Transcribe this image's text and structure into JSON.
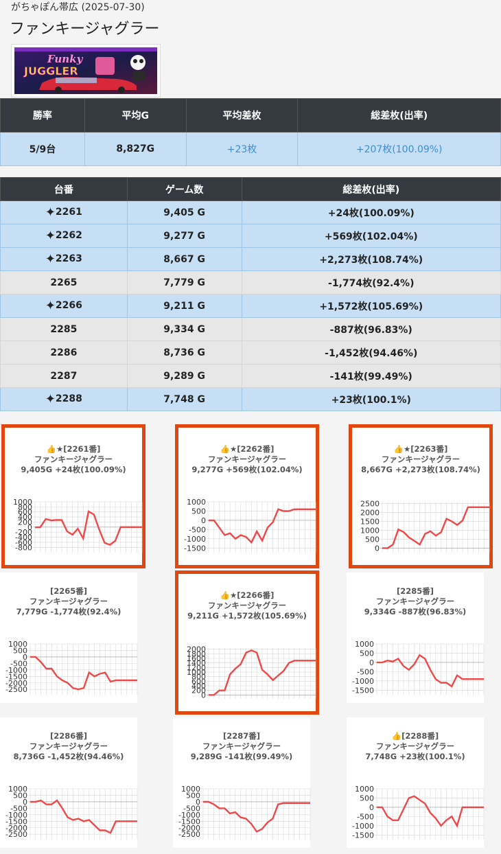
{
  "header": {
    "store": "がちゃぽん帯広 (2025-07-30)",
    "title": "ファンキージャグラー"
  },
  "summary": {
    "headers": [
      "勝率",
      "平均G",
      "平均差枚",
      "総差枚(出率)"
    ],
    "values": [
      "5/9台",
      "8,827G",
      "+23枚",
      "+207枚(100.09%)"
    ]
  },
  "units": {
    "headers": [
      "台番",
      "ゲーム数",
      "総差枚(出率)"
    ],
    "rows": [
      {
        "id": "2261",
        "games": "9,405 G",
        "diff": "+24枚(100.09%)",
        "win": true
      },
      {
        "id": "2262",
        "games": "9,277 G",
        "diff": "+569枚(102.04%)",
        "win": true
      },
      {
        "id": "2263",
        "games": "8,667 G",
        "diff": "+2,273枚(108.74%)",
        "win": true
      },
      {
        "id": "2265",
        "games": "7,779 G",
        "diff": "-1,774枚(92.4%)",
        "win": false
      },
      {
        "id": "2266",
        "games": "9,211 G",
        "diff": "+1,572枚(105.69%)",
        "win": true
      },
      {
        "id": "2285",
        "games": "9,334 G",
        "diff": "-887枚(96.83%)",
        "win": false
      },
      {
        "id": "2286",
        "games": "8,736 G",
        "diff": "-1,452枚(94.46%)",
        "win": false
      },
      {
        "id": "2287",
        "games": "9,289 G",
        "diff": "-141枚(99.49%)",
        "win": false
      },
      {
        "id": "2288",
        "games": "7,748 G",
        "diff": "+23枚(100.1%)",
        "win": true
      }
    ]
  },
  "cards": [
    {
      "title": "👍★[2261番]",
      "model": "ファンキージャグラー",
      "summary": "9,405G +24枚(100.09%)",
      "highlight": true
    },
    {
      "title": "👍★[2262番]",
      "model": "ファンキージャグラー",
      "summary": "9,277G +569枚(102.04%)",
      "highlight": true
    },
    {
      "title": "👍★[2263番]",
      "model": "ファンキージャグラー",
      "summary": "8,667G +2,273枚(108.74%)",
      "highlight": true
    },
    {
      "title": "[2265番]",
      "model": "ファンキージャグラー",
      "summary": "7,779G -1,774枚(92.4%)",
      "highlight": false
    },
    {
      "title": "👍★[2266番]",
      "model": "ファンキージャグラー",
      "summary": "9,211G +1,572枚(105.69%)",
      "highlight": true
    },
    {
      "title": "[2285番]",
      "model": "ファンキージャグラー",
      "summary": "9,334G -887枚(96.83%)",
      "highlight": false
    },
    {
      "title": "[2286番]",
      "model": "ファンキージャグラー",
      "summary": "8,736G -1,452枚(94.46%)",
      "highlight": false
    },
    {
      "title": "[2287番]",
      "model": "ファンキージャグラー",
      "summary": "9,289G -141枚(99.49%)",
      "highlight": false
    },
    {
      "title": "👍[2288番]",
      "model": "ファンキージャグラー",
      "summary": "7,748G +23枚(100.1%)",
      "highlight": false
    }
  ],
  "colors": {
    "line": "#f04848",
    "highlight_border": "#e0480f",
    "header_bg": "#343a40",
    "win_row": "#c6dff5",
    "lose_row": "#e7e7e7"
  },
  "chart_data": [
    {
      "type": "line",
      "ylim": [
        -900,
        1000
      ],
      "yticks": [
        1000,
        800,
        600,
        400,
        200,
        0,
        -200,
        -400,
        -600,
        -800
      ],
      "values": [
        -10,
        0,
        320,
        270,
        280,
        280,
        -170,
        -300,
        -60,
        -450,
        620,
        500,
        -100,
        -620,
        -700,
        -540,
        0,
        0,
        0,
        0,
        0
      ]
    },
    {
      "type": "line",
      "ylim": [
        -1600,
        1000
      ],
      "yticks": [
        1000,
        500,
        0,
        -500,
        -1000,
        -1500
      ],
      "values": [
        0,
        0,
        -400,
        -800,
        -700,
        -1000,
        -800,
        -900,
        -1200,
        -600,
        -1100,
        -400,
        -100,
        600,
        500,
        500,
        600,
        600,
        600,
        600,
        600
      ]
    },
    {
      "type": "line",
      "ylim": [
        -100,
        2600
      ],
      "yticks": [
        2500,
        2000,
        1500,
        1000,
        500,
        0
      ],
      "values": [
        0,
        0,
        200,
        1050,
        900,
        600,
        400,
        200,
        800,
        950,
        700,
        900,
        1650,
        1500,
        1300,
        1550,
        2300,
        2300,
        2300,
        2300,
        2300
      ]
    },
    {
      "type": "line",
      "ylim": [
        -2700,
        1000
      ],
      "yticks": [
        1000,
        500,
        0,
        -500,
        -1000,
        -1500,
        -2000,
        -2500
      ],
      "values": [
        0,
        0,
        -400,
        -900,
        -900,
        -1500,
        -1800,
        -2000,
        -2400,
        -2500,
        -2400,
        -1200,
        -1500,
        -1300,
        -1200,
        -1900,
        -1800,
        -1800,
        -1800,
        -1800,
        -1800
      ]
    },
    {
      "type": "line",
      "ylim": [
        -50,
        2050
      ],
      "yticks": [
        2000,
        1800,
        1600,
        1400,
        1200,
        1000,
        800,
        600,
        400,
        200,
        0
      ],
      "values": [
        0,
        0,
        200,
        200,
        900,
        1150,
        1350,
        1850,
        1950,
        1850,
        1100,
        900,
        650,
        850,
        1050,
        1400,
        1500,
        1500,
        1500,
        1500,
        1500
      ]
    },
    {
      "type": "line",
      "ylim": [
        -1600,
        1000
      ],
      "yticks": [
        1000,
        500,
        0,
        -500,
        -1000,
        -1500
      ],
      "values": [
        0,
        0,
        100,
        50,
        200,
        -200,
        -400,
        -100,
        400,
        200,
        -400,
        -900,
        -1100,
        -1100,
        -1300,
        -700,
        -900,
        -900,
        -900,
        -900,
        -900
      ]
    },
    {
      "type": "line",
      "ylim": [
        -2700,
        1000
      ],
      "yticks": [
        1000,
        500,
        0,
        -500,
        -1000,
        -1500,
        -2000,
        -2500
      ],
      "values": [
        0,
        0,
        100,
        -200,
        -200,
        100,
        -500,
        -1200,
        -1400,
        -1300,
        -1500,
        -1400,
        -1800,
        -2200,
        -2200,
        -2400,
        -1500,
        -1500,
        -1500,
        -1500,
        -1500
      ]
    },
    {
      "type": "line",
      "ylim": [
        -2700,
        1000
      ],
      "yticks": [
        1000,
        500,
        0,
        -500,
        -1000,
        -1500,
        -2000,
        -2500
      ],
      "values": [
        0,
        0,
        -200,
        -500,
        -500,
        -900,
        -800,
        -1200,
        -1300,
        -1700,
        -2300,
        -2100,
        -1600,
        -1300,
        -200,
        -100,
        -100,
        -100,
        -100,
        -100,
        -100
      ]
    },
    {
      "type": "line",
      "ylim": [
        -1600,
        1000
      ],
      "yticks": [
        1000,
        500,
        0,
        -500,
        -1000,
        -1500
      ],
      "values": [
        0,
        0,
        -500,
        -700,
        -700,
        -100,
        500,
        600,
        400,
        200,
        -300,
        -600,
        -1000,
        -700,
        -500,
        -1000,
        0,
        0,
        0,
        0,
        0
      ]
    }
  ]
}
